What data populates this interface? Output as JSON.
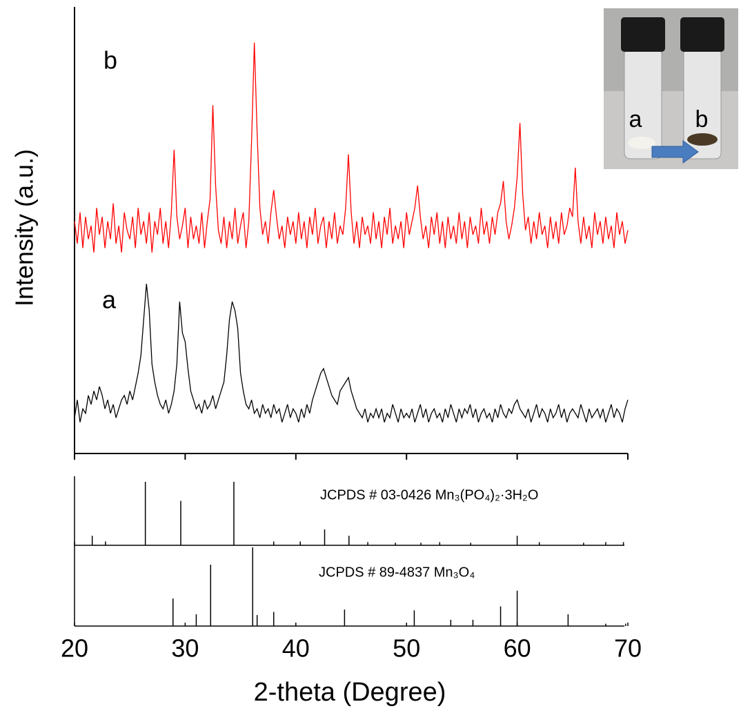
{
  "chart_data": [
    {
      "type": "line",
      "ylabel": "Intensity (a.u.)",
      "xlim": [
        20,
        70
      ],
      "ylim": [
        0,
        100
      ],
      "xticks": [
        20,
        30,
        40,
        50,
        60,
        70
      ],
      "x": [
        20,
        20.25,
        20.5,
        20.75,
        21,
        21.25,
        21.5,
        21.75,
        22,
        22.25,
        22.5,
        22.75,
        23,
        23.25,
        23.5,
        23.75,
        24,
        24.25,
        24.5,
        24.75,
        25,
        25.25,
        25.5,
        25.75,
        26,
        26.25,
        26.5,
        26.75,
        27,
        27.25,
        27.5,
        27.75,
        28,
        28.25,
        28.5,
        28.75,
        29,
        29.25,
        29.5,
        29.75,
        30,
        30.25,
        30.5,
        30.75,
        31,
        31.25,
        31.5,
        31.75,
        32,
        32.25,
        32.5,
        32.75,
        33,
        33.25,
        33.5,
        33.75,
        34,
        34.25,
        34.5,
        34.75,
        35,
        35.25,
        35.5,
        35.75,
        36,
        36.25,
        36.5,
        36.75,
        37,
        37.25,
        37.5,
        37.75,
        38,
        38.25,
        38.5,
        38.75,
        39,
        39.25,
        39.5,
        39.75,
        40,
        40.25,
        40.5,
        40.75,
        41,
        41.25,
        41.5,
        41.75,
        42,
        42.25,
        42.5,
        42.75,
        43,
        43.25,
        43.5,
        43.75,
        44,
        44.25,
        44.5,
        44.75,
        45,
        45.25,
        45.5,
        45.75,
        46,
        46.25,
        46.5,
        46.75,
        47,
        47.25,
        47.5,
        47.75,
        48,
        48.25,
        48.5,
        48.75,
        49,
        49.25,
        49.5,
        49.75,
        50,
        50.25,
        50.5,
        50.75,
        51,
        51.25,
        51.5,
        51.75,
        52,
        52.25,
        52.5,
        52.75,
        53,
        53.25,
        53.5,
        53.75,
        54,
        54.25,
        54.5,
        54.75,
        55,
        55.25,
        55.5,
        55.75,
        56,
        56.25,
        56.5,
        56.75,
        57,
        57.25,
        57.5,
        57.75,
        58,
        58.25,
        58.5,
        58.75,
        59,
        59.25,
        59.5,
        59.75,
        60,
        60.25,
        60.5,
        60.75,
        61,
        61.25,
        61.5,
        61.75,
        62,
        62.25,
        62.5,
        62.75,
        63,
        63.25,
        63.5,
        63.75,
        64,
        64.25,
        64.5,
        64.75,
        65,
        65.25,
        65.5,
        65.75,
        66,
        66.25,
        66.5,
        66.75,
        67,
        67.25,
        67.5,
        67.75,
        68,
        68.25,
        68.5,
        68.75,
        69,
        69.25,
        69.5,
        69.75,
        70
      ],
      "series": [
        {
          "name": "a",
          "color": "#000000",
          "values": [
            8,
            12,
            7,
            10,
            9,
            13,
            11,
            14,
            12,
            15,
            13,
            10,
            12,
            9,
            11,
            8,
            10,
            12,
            13,
            11,
            14,
            12,
            15,
            18,
            22,
            30,
            38,
            32,
            20,
            16,
            13,
            11,
            10,
            12,
            9,
            11,
            14,
            20,
            34,
            27,
            25,
            19,
            14,
            12,
            10,
            11,
            9,
            12,
            10,
            11,
            13,
            10,
            12,
            14,
            16,
            22,
            30,
            34,
            32,
            28,
            18,
            14,
            11,
            10,
            12,
            9,
            10,
            8,
            11,
            9,
            10,
            8,
            11,
            9,
            10,
            7,
            9,
            11,
            8,
            10,
            9,
            7,
            10,
            8,
            11,
            9,
            12,
            14,
            16,
            18,
            19,
            17,
            15,
            13,
            12,
            11,
            14,
            15,
            16,
            17,
            14,
            12,
            10,
            9,
            8,
            10,
            7,
            9,
            8,
            10,
            8,
            10,
            7,
            9,
            8,
            11,
            9,
            7,
            10,
            8,
            9,
            8,
            10,
            7,
            9,
            11,
            8,
            10,
            7,
            9,
            10,
            8,
            9,
            7,
            10,
            8,
            11,
            9,
            7,
            10,
            8,
            10,
            9,
            11,
            8,
            10,
            7,
            9,
            10,
            8,
            9,
            7,
            10,
            8,
            11,
            9,
            8,
            10,
            9,
            11,
            12,
            10,
            9,
            8,
            10,
            7,
            9,
            11,
            8,
            10,
            9,
            7,
            10,
            8,
            9,
            11,
            8,
            10,
            7,
            9,
            10,
            9,
            8,
            11,
            9,
            7,
            10,
            8,
            9,
            10,
            8,
            10,
            7,
            9,
            11,
            8,
            10,
            9,
            7,
            10,
            12
          ]
        },
        {
          "name": "b",
          "color": "#ff0000",
          "values": [
            52,
            47,
            54,
            46,
            53,
            48,
            51,
            45,
            55,
            49,
            53,
            46,
            52,
            48,
            56,
            47,
            51,
            45,
            54,
            50,
            48,
            53,
            46,
            55,
            49,
            52,
            47,
            54,
            45,
            52,
            49,
            55,
            47,
            52,
            46,
            54,
            68,
            53,
            48,
            51,
            55,
            46,
            53,
            48,
            51,
            47,
            54,
            46,
            52,
            57,
            78,
            60,
            50,
            47,
            53,
            46,
            52,
            48,
            55,
            47,
            51,
            54,
            46,
            52,
            70,
            92,
            72,
            55,
            49,
            52,
            47,
            54,
            59,
            53,
            48,
            51,
            46,
            53,
            49,
            52,
            47,
            54,
            48,
            52,
            46,
            53,
            49,
            55,
            47,
            51,
            53,
            46,
            52,
            48,
            54,
            47,
            51,
            49,
            55,
            67,
            54,
            47,
            52,
            46,
            53,
            49,
            51,
            47,
            54,
            48,
            52,
            46,
            53,
            49,
            55,
            47,
            51,
            48,
            52,
            46,
            54,
            49,
            52,
            55,
            60,
            53,
            48,
            51,
            46,
            53,
            49,
            54,
            47,
            52,
            46,
            53,
            48,
            51,
            47,
            54,
            48,
            52,
            46,
            53,
            49,
            51,
            47,
            55,
            49,
            52,
            47,
            53,
            49,
            54,
            56,
            61,
            52,
            48,
            51,
            55,
            62,
            74,
            58,
            50,
            53,
            47,
            52,
            48,
            54,
            49,
            51,
            46,
            53,
            48,
            52,
            47,
            54,
            49,
            51,
            55,
            53,
            64,
            52,
            47,
            53,
            48,
            51,
            46,
            54,
            49,
            52,
            47,
            53,
            48,
            51,
            46,
            54,
            49,
            52,
            47,
            50
          ]
        }
      ]
    },
    {
      "type": "stem",
      "label": "JCPDS # 03-0426 Mn₃(PO₄)₂·3H₂O",
      "color": "#000000",
      "xlim": [
        20,
        70
      ],
      "ylim": [
        0,
        100
      ],
      "x": [
        21.6,
        22.8,
        26.4,
        29.6,
        34.4,
        38.0,
        40.4,
        42.6,
        44.8,
        46.5,
        49.0,
        51.3,
        53.0,
        55.8,
        60.0,
        62.0,
        66.0,
        68.0,
        69.6
      ],
      "values": [
        15,
        6,
        100,
        70,
        100,
        6,
        6,
        25,
        15,
        5,
        4,
        4,
        5,
        4,
        15,
        5,
        4,
        5,
        5
      ]
    },
    {
      "type": "stem",
      "label": "JCPDS # 89-4837 Mn₃O₄",
      "color": "#000000",
      "xlabel": "2-theta (Degree)",
      "xlim": [
        20,
        70
      ],
      "ylim": [
        0,
        100
      ],
      "xticks": [
        20,
        30,
        40,
        50,
        60,
        70
      ],
      "x": [
        28.9,
        31.0,
        32.3,
        36.1,
        36.5,
        38.0,
        44.4,
        50.7,
        54.0,
        56.0,
        58.5,
        60.0,
        64.6,
        68.0,
        69.8
      ],
      "values": [
        35,
        15,
        78,
        100,
        14,
        18,
        21,
        20,
        8,
        8,
        25,
        45,
        15,
        3,
        3
      ]
    }
  ],
  "inset": {
    "labels": [
      "a",
      "b"
    ]
  }
}
